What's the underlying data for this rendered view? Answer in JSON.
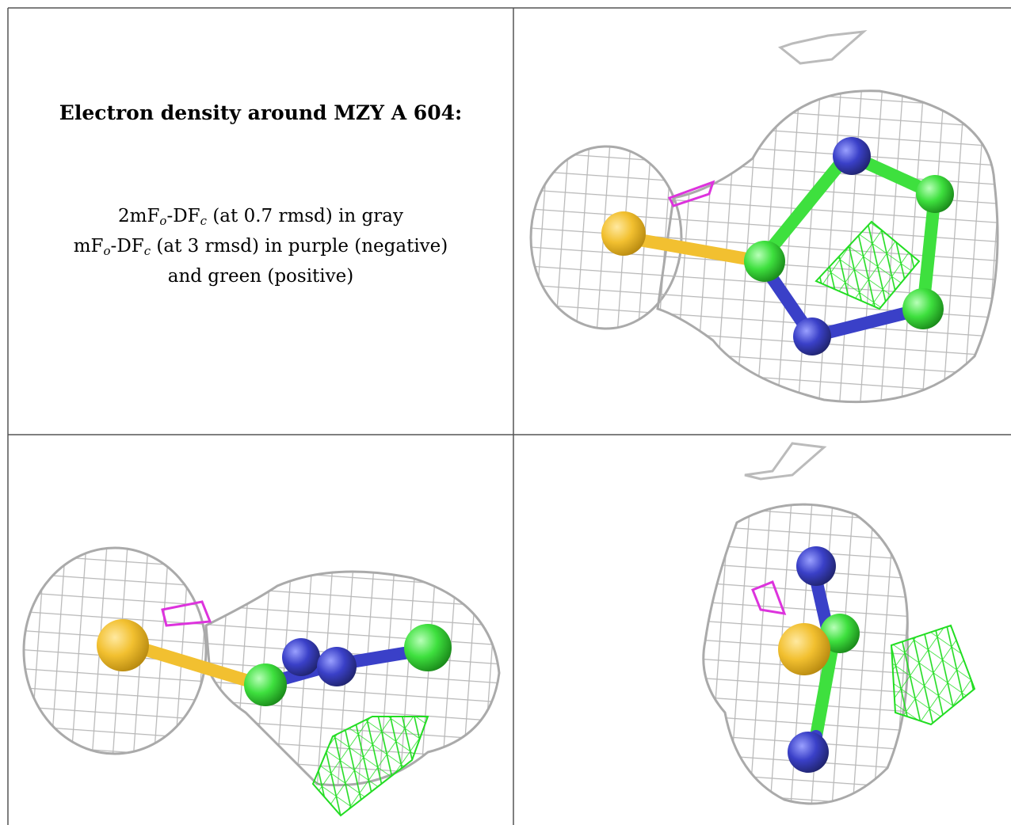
{
  "caption": {
    "title": "Electron density around MZY A 604:",
    "lines": [
      [
        "2mF",
        "o",
        "-DF",
        "c",
        " (at 0.7 rmsd) in gray"
      ],
      [
        "mF",
        "o",
        "-DF",
        "c",
        " (at 3 rmsd) in purple (negative)"
      ],
      [
        "and green (positive)"
      ]
    ]
  }
}
